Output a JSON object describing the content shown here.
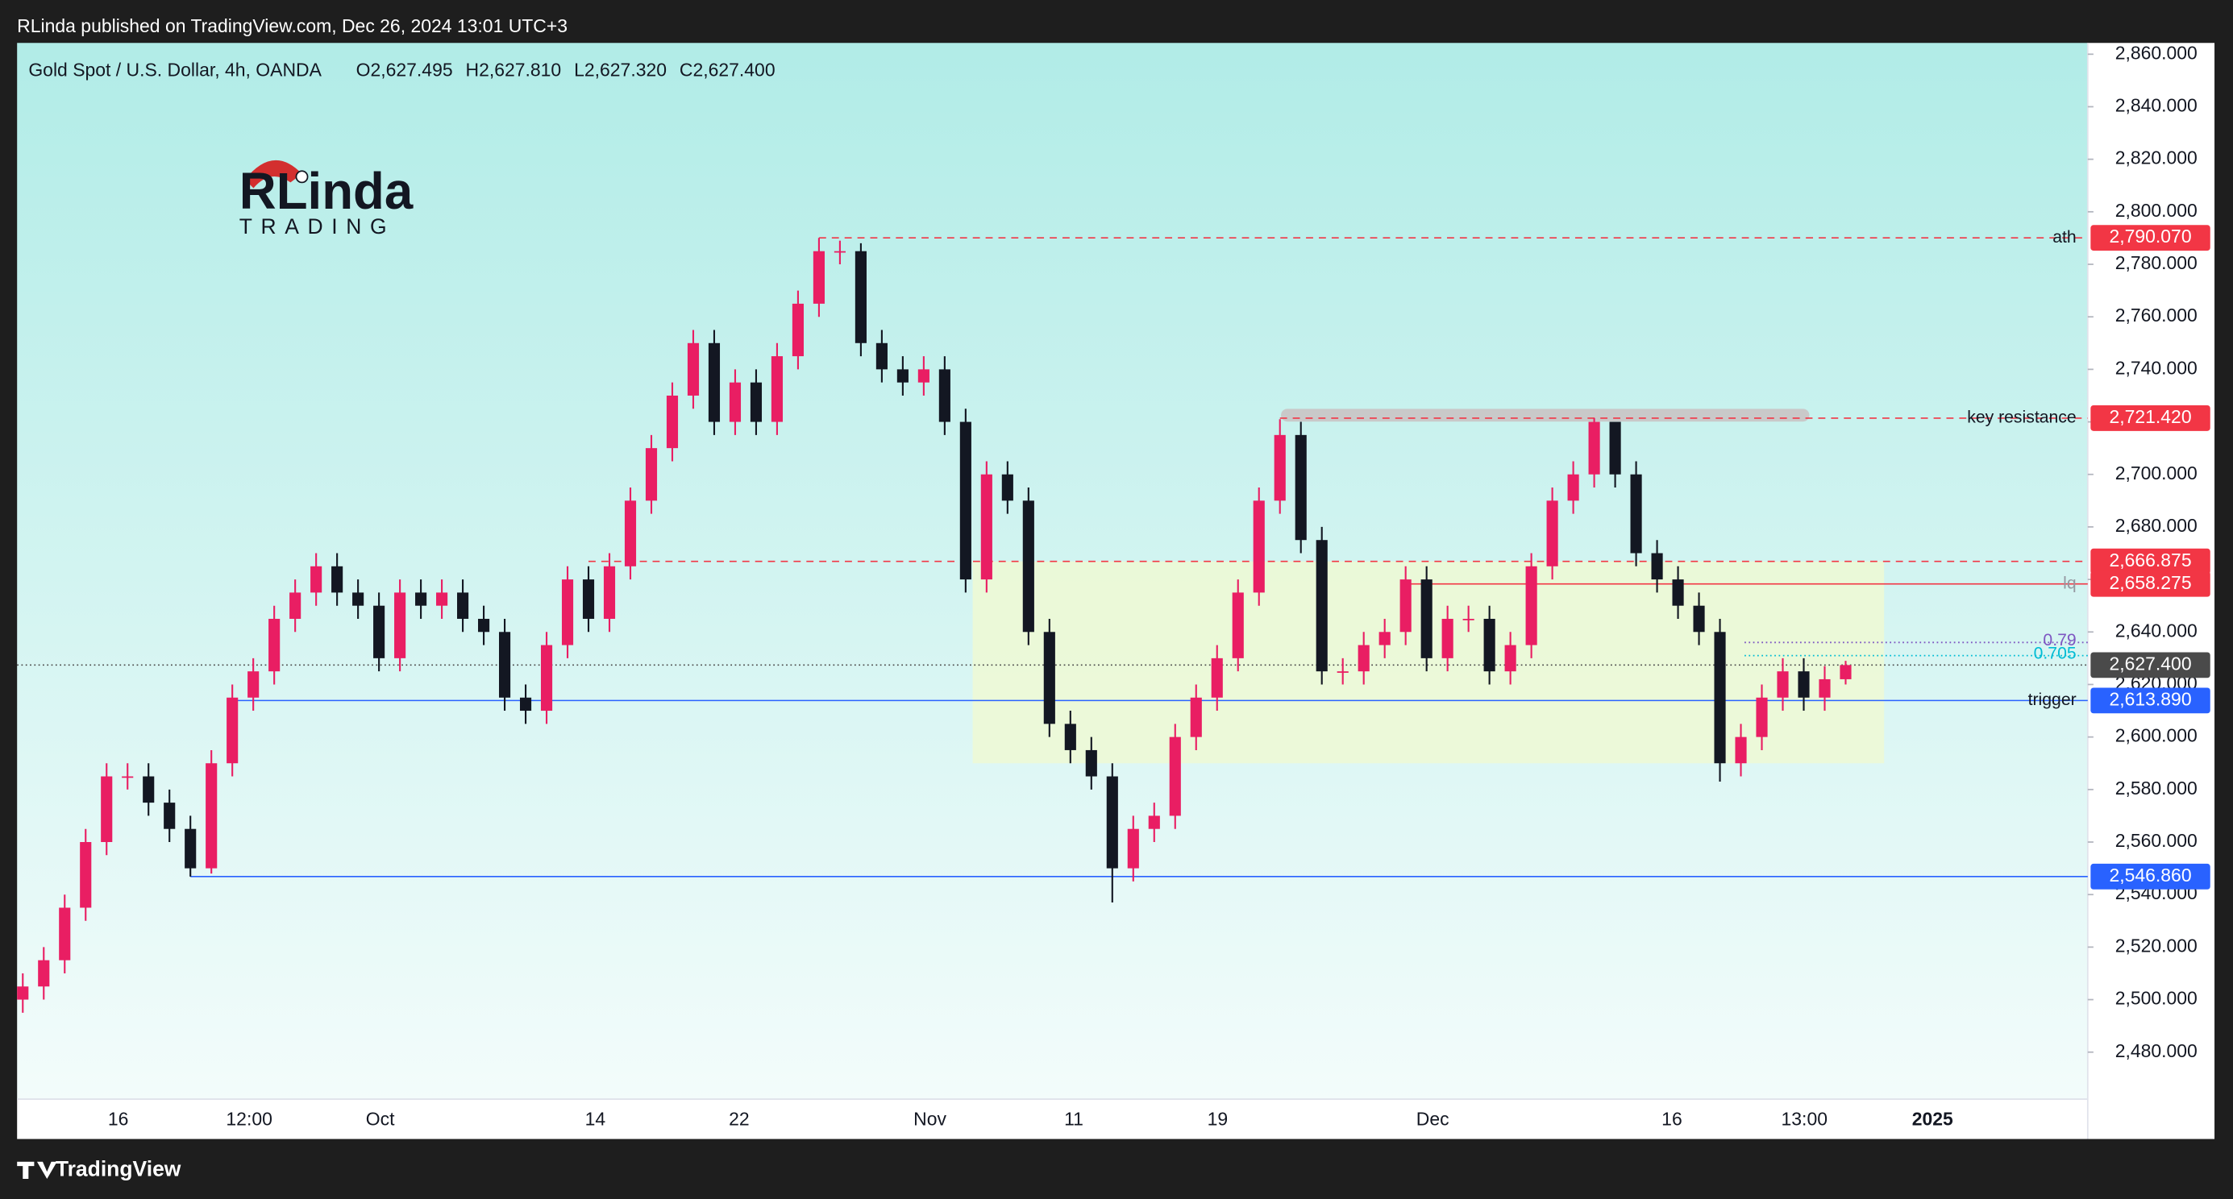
{
  "page": {
    "published": "RLinda published on TradingView.com, Dec 26, 2024 13:01 UTC+3",
    "brand": "TradingView"
  },
  "logo": {
    "name": "RLinda",
    "sub": "TRADING"
  },
  "chart_data": {
    "type": "candlestick",
    "title": "Gold Spot / U.S. Dollar, 4h, OANDA",
    "ohlc_labels": [
      "O2,627.495",
      "H2,627.810",
      "L2,627.320",
      "C2,627.400"
    ],
    "up_color": "#e91e63",
    "down_color": "#131722",
    "open": [
      2500,
      2505,
      2515,
      2535,
      2560,
      2585,
      2585,
      2575,
      2565,
      2550,
      2590,
      2615,
      2625,
      2645,
      2655,
      2665,
      2655,
      2650,
      2630,
      2655,
      2650,
      2655,
      2645,
      2640,
      2615,
      2610,
      2635,
      2660,
      2645,
      2665,
      2690,
      2710,
      2730,
      2750,
      2720,
      2735,
      2720,
      2745,
      2765,
      2785,
      2785,
      2750,
      2740,
      2735,
      2740,
      2720,
      2660,
      2700,
      2690,
      2640,
      2605,
      2595,
      2585,
      2550,
      2565,
      2570,
      2600,
      2615,
      2630,
      2655,
      2690,
      2715,
      2675,
      2625,
      2625,
      2635,
      2640,
      2660,
      2630,
      2645,
      2645,
      2625,
      2635,
      2665,
      2690,
      2700,
      2720,
      2700,
      2670,
      2660,
      2650,
      2640,
      2590,
      2600,
      2615,
      2625,
      2615,
      2622
    ],
    "high": [
      2510,
      2520,
      2540,
      2565,
      2590,
      2590,
      2590,
      2580,
      2570,
      2595,
      2620,
      2630,
      2650,
      2660,
      2670,
      2670,
      2660,
      2655,
      2660,
      2660,
      2660,
      2660,
      2650,
      2645,
      2620,
      2640,
      2665,
      2665,
      2670,
      2695,
      2715,
      2735,
      2755,
      2755,
      2740,
      2740,
      2750,
      2770,
      2790.07,
      2789,
      2788,
      2755,
      2745,
      2745,
      2745,
      2725,
      2705,
      2705,
      2695,
      2645,
      2610,
      2600,
      2590,
      2570,
      2575,
      2605,
      2620,
      2635,
      2660,
      2695,
      2721,
      2720,
      2680,
      2630,
      2640,
      2645,
      2665,
      2665,
      2650,
      2650,
      2650,
      2640,
      2670,
      2695,
      2705,
      2721.42,
      2719,
      2705,
      2675,
      2665,
      2655,
      2645,
      2605,
      2620,
      2630,
      2630,
      2627,
      2629
    ],
    "low": [
      2495,
      2500,
      2510,
      2530,
      2555,
      2580,
      2570,
      2560,
      2546.86,
      2548,
      2585,
      2610,
      2620,
      2640,
      2650,
      2650,
      2645,
      2625,
      2625,
      2645,
      2645,
      2640,
      2635,
      2610,
      2605,
      2605,
      2630,
      2640,
      2640,
      2660,
      2685,
      2705,
      2725,
      2715,
      2715,
      2715,
      2715,
      2740,
      2760,
      2780,
      2745,
      2735,
      2730,
      2730,
      2715,
      2655,
      2655,
      2685,
      2635,
      2600,
      2590,
      2580,
      2537,
      2545,
      2560,
      2565,
      2595,
      2610,
      2625,
      2650,
      2685,
      2670,
      2620,
      2620,
      2620,
      2630,
      2635,
      2625,
      2625,
      2640,
      2620,
      2620,
      2630,
      2660,
      2685,
      2695,
      2695,
      2665,
      2655,
      2645,
      2635,
      2583,
      2585,
      2595,
      2610,
      2610,
      2610,
      2620
    ],
    "close": [
      2505,
      2515,
      2535,
      2560,
      2585,
      2585,
      2575,
      2565,
      2550,
      2590,
      2615,
      2625,
      2645,
      2655,
      2665,
      2655,
      2650,
      2630,
      2655,
      2650,
      2655,
      2645,
      2640,
      2615,
      2610,
      2635,
      2660,
      2645,
      2665,
      2690,
      2710,
      2730,
      2750,
      2720,
      2735,
      2720,
      2745,
      2765,
      2785,
      2785,
      2750,
      2740,
      2735,
      2740,
      2720,
      2660,
      2700,
      2690,
      2640,
      2605,
      2595,
      2585,
      2550,
      2565,
      2570,
      2600,
      2615,
      2630,
      2655,
      2690,
      2715,
      2675,
      2625,
      2625,
      2635,
      2640,
      2660,
      2630,
      2645,
      2645,
      2625,
      2635,
      2665,
      2690,
      2700,
      2720,
      2700,
      2670,
      2660,
      2650,
      2640,
      2590,
      2600,
      2615,
      2625,
      2615,
      2622,
      2627.4
    ],
    "x_labels": [
      "16",
      "12:00",
      "Oct",
      "14",
      "22",
      "Nov",
      "11",
      "19",
      "Dec",
      "16",
      "13:00",
      "2025"
    ],
    "ylim": [
      2462.1,
      2864.3
    ],
    "yticks": [
      {
        "value": 2480,
        "label": "2,480.000"
      },
      {
        "value": 2500,
        "label": "2,500.000"
      },
      {
        "value": 2520,
        "label": "2,520.000"
      },
      {
        "value": 2540,
        "label": "2,540.000"
      },
      {
        "value": 2560,
        "label": "2,560.000"
      },
      {
        "value": 2580,
        "label": "2,580.000"
      },
      {
        "value": 2600,
        "label": "2,600.000"
      },
      {
        "value": 2620,
        "label": "2,620.000"
      },
      {
        "value": 2640,
        "label": "2,640.000"
      },
      {
        "value": 2660,
        "label": "2,660.000"
      },
      {
        "value": 2680,
        "label": "2,680.000"
      },
      {
        "value": 2700,
        "label": "2,700.000"
      },
      {
        "value": 2720,
        "label": "2,720.000"
      },
      {
        "value": 2740,
        "label": "2,740.000"
      },
      {
        "value": 2760,
        "label": "2,760.000"
      },
      {
        "value": 2780,
        "label": "2,780.000"
      },
      {
        "value": 2800,
        "label": "2,800.000"
      },
      {
        "value": 2820,
        "label": "2,820.000"
      },
      {
        "value": 2840,
        "label": "2,840.000"
      },
      {
        "value": 2860,
        "label": "2,860.000"
      }
    ],
    "zone": {
      "top": 2666.875,
      "bottom": 2590,
      "color": "#eef9d4"
    },
    "resistance_bar": {
      "value": 2722,
      "color": "#c9c9c9"
    },
    "fib_levels": [
      {
        "name": "0.79",
        "value": 2636,
        "color": "#7e57c2"
      },
      {
        "name": "0.705",
        "value": 2631,
        "color": "#00bcd4"
      }
    ],
    "levels": [
      {
        "name": "ath",
        "value": 2790.07,
        "label": "2,790.070",
        "color": "#f23645",
        "style": "dashed"
      },
      {
        "name": "key resistance",
        "value": 2721.42,
        "label": "2,721.420",
        "color": "#f23645",
        "style": "dashed"
      },
      {
        "value": 2666.875,
        "label": "2,666.875",
        "color": "#f23645",
        "style": "dashed"
      },
      {
        "name": "lq",
        "value": 2658.275,
        "label": "2,658.275",
        "color": "#f23645",
        "style": "solid"
      },
      {
        "value": 2627.4,
        "label": "2,627.400",
        "color": "#4a4a4a",
        "style": "dotted"
      },
      {
        "name": "trigger",
        "value": 2613.89,
        "label": "2,613.890",
        "color": "#2962ff",
        "style": "solid"
      },
      {
        "value": 2546.86,
        "label": "2,546.860",
        "color": "#2962ff",
        "style": "solid"
      }
    ]
  }
}
